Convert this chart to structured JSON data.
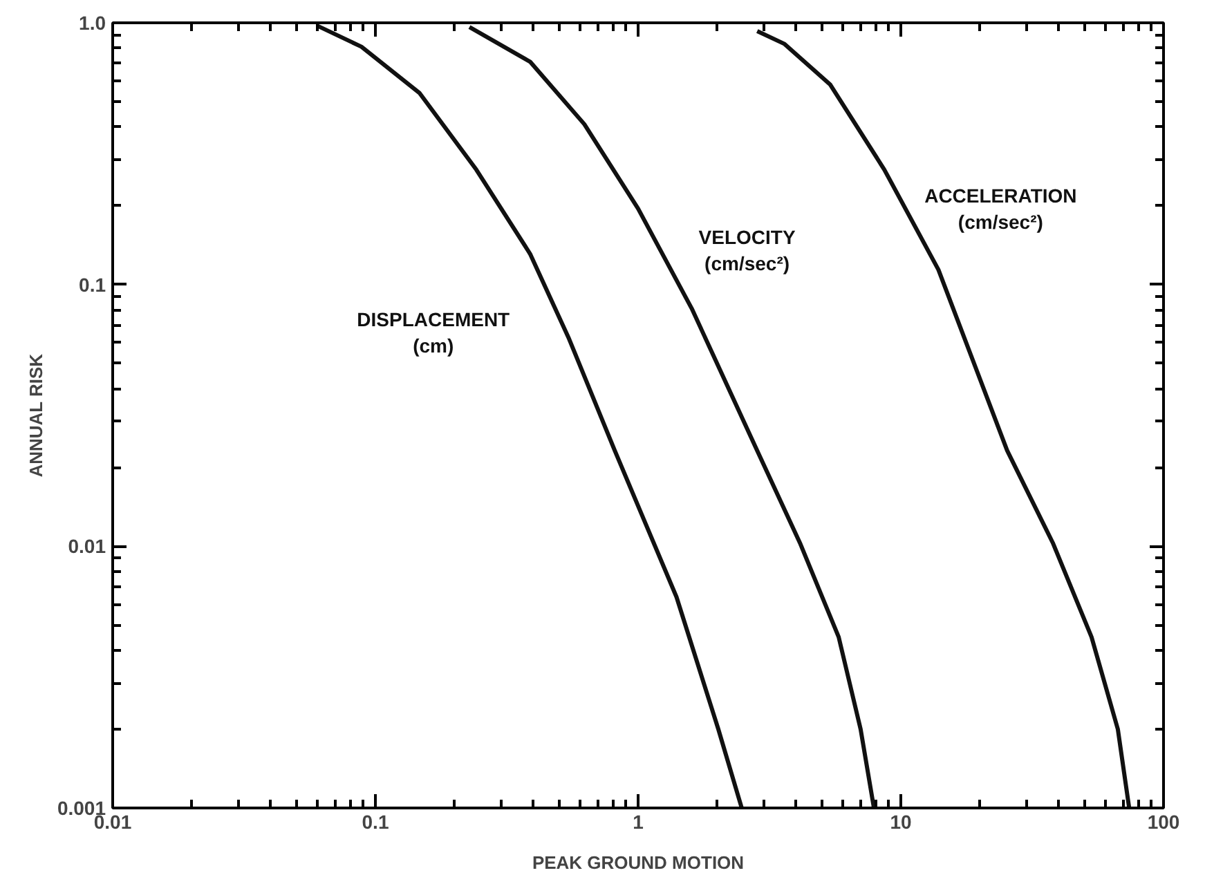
{
  "chart_data": {
    "type": "line",
    "xlabel": "PEAK GROUND MOTION",
    "ylabel": "ANNUAL RISK",
    "log": "xy",
    "grid": false,
    "legend": false,
    "marker": "none",
    "line_style": "solid",
    "xlim": [
      0.01,
      100
    ],
    "xticks": [
      0.01,
      0.1,
      1,
      10,
      100
    ],
    "ylim": [
      0.001,
      1
    ],
    "yticks": [
      0.001,
      0.01,
      0.1,
      {
        "value": 1,
        "label": "1.0"
      }
    ],
    "series": [
      {
        "name": "DISPLACEMENT\n(cm)",
        "color": "#111111",
        "x": [
          0.06,
          0.0885,
          0.147,
          0.242,
          0.388,
          0.546,
          0.815,
          1.4,
          2.02,
          2.48
        ],
        "values": [
          0.975,
          0.81,
          0.54,
          0.275,
          0.131,
          0.062,
          0.0232,
          0.0064,
          0.002,
          0.001
        ]
      },
      {
        "name": "VELOCITY\n(cm/sec²)",
        "color": "#111111",
        "x": [
          0.228,
          0.388,
          0.624,
          1.0,
          1.6,
          2.84,
          4.13,
          5.8,
          7.03,
          7.9
        ],
        "values": [
          0.964,
          0.71,
          0.41,
          0.195,
          0.081,
          0.0232,
          0.0103,
          0.0045,
          0.002,
          0.001
        ]
      },
      {
        "name": "ACCELERATION\n(cm/sec²)",
        "color": "#111111",
        "x": [
          2.84,
          3.61,
          5.39,
          8.65,
          13.9,
          25.4,
          37.9,
          53.2,
          67.0,
          74.0
        ],
        "values": [
          0.93,
          0.83,
          0.58,
          0.275,
          0.114,
          0.0232,
          0.0103,
          0.0045,
          0.002,
          0.001
        ]
      }
    ]
  }
}
